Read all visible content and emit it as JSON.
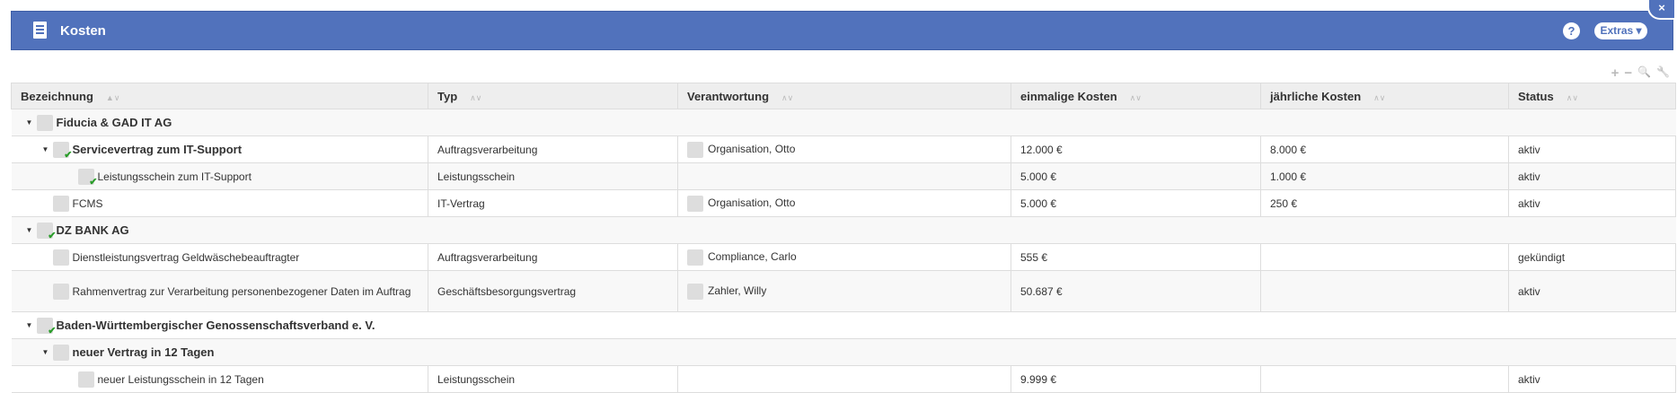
{
  "header": {
    "title": "Kosten",
    "help": "?",
    "extras": "Extras ▾",
    "close": "×"
  },
  "toolbar": {
    "add": "+",
    "remove": "−",
    "search": "🔍",
    "settings": "🔧"
  },
  "columns": [
    "Bezeichnung",
    "Typ",
    "Verantwortung",
    "einmalige Kosten",
    "jährliche Kosten",
    "Status"
  ],
  "rows": [
    {
      "level": 0,
      "group": true,
      "expanded": true,
      "check": false,
      "name": "Fiducia & GAD IT AG"
    },
    {
      "level": 1,
      "bold": true,
      "expanded": true,
      "check": true,
      "name": "Servicevertrag zum IT-Support",
      "typ": "Auftragsverarbeitung",
      "owner": "Organisation, Otto",
      "once": "12.000 €",
      "yearly": "8.000 €",
      "status": "aktiv"
    },
    {
      "level": 2,
      "check": true,
      "name": "Leistungsschein zum IT-Support",
      "typ": "Leistungsschein",
      "owner": "",
      "once": "5.000 €",
      "yearly": "1.000 €",
      "status": "aktiv"
    },
    {
      "level": 1,
      "check": false,
      "name": "FCMS",
      "typ": "IT-Vertrag",
      "owner": "Organisation, Otto",
      "once": "5.000 €",
      "yearly": "250 €",
      "status": "aktiv"
    },
    {
      "level": 0,
      "group": true,
      "expanded": true,
      "check": true,
      "name": "DZ BANK AG"
    },
    {
      "level": 1,
      "check": false,
      "name": "Dienstleistungsvertrag Geldwäschebeauftragter",
      "typ": "Auftragsverarbeitung",
      "owner": "Compliance, Carlo",
      "once": "555 €",
      "yearly": "",
      "status": "gekündigt"
    },
    {
      "level": 1,
      "check": false,
      "tall": true,
      "name": "Rahmenvertrag zur Verarbeitung personenbezogener Daten im Auftrag",
      "typ": "Geschäftsbesorgungsvertrag",
      "owner": "Zahler, Willy",
      "once": "50.687 €",
      "yearly": "",
      "status": "aktiv"
    },
    {
      "level": 0,
      "group": true,
      "expanded": true,
      "check": true,
      "name": "Baden-Württembergischer Genossenschaftsverband e. V."
    },
    {
      "level": 1,
      "bold": true,
      "group": true,
      "expanded": true,
      "check": false,
      "name": "neuer Vertrag in 12 Tagen"
    },
    {
      "level": 2,
      "check": false,
      "name": "neuer Leistungsschein in 12 Tagen",
      "typ": "Leistungsschein",
      "owner": "",
      "once": "9.999 €",
      "yearly": "",
      "status": "aktiv"
    }
  ],
  "colors": {
    "header": "#5172bc",
    "check": "#2a9d2a"
  }
}
